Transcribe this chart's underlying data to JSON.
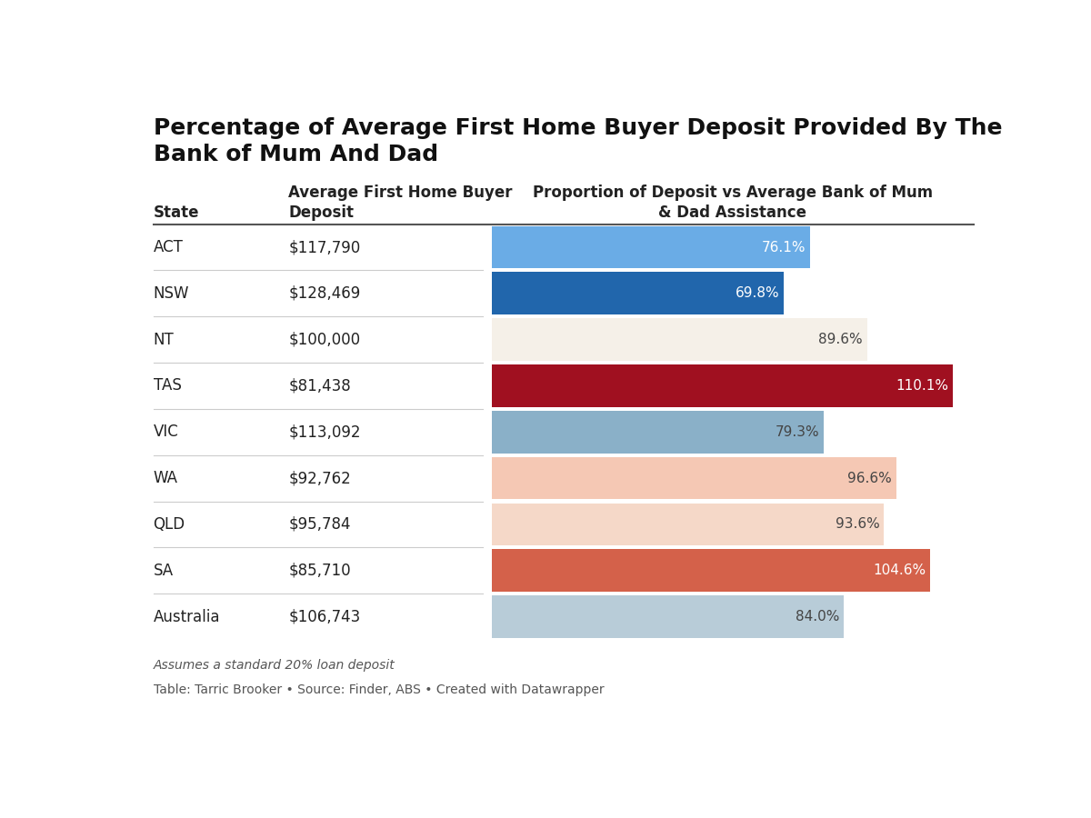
{
  "title": "Percentage of Average First Home Buyer Deposit Provided By The\nBank of Mum And Dad",
  "col1_header": "State",
  "col2_header": "Average First Home Buyer\nDeposit",
  "col3_header": "Proportion of Deposit vs Average Bank of Mum\n& Dad Assistance",
  "rows": [
    {
      "state": "ACT",
      "deposit": "$117,790",
      "pct": 76.1,
      "pct_label": "76.1%",
      "color": "#6aace6",
      "text_color": "#ffffff"
    },
    {
      "state": "NSW",
      "deposit": "$128,469",
      "pct": 69.8,
      "pct_label": "69.8%",
      "color": "#2166ac",
      "text_color": "#ffffff"
    },
    {
      "state": "NT",
      "deposit": "$100,000",
      "pct": 89.6,
      "pct_label": "89.6%",
      "color": "#f5f0e8",
      "text_color": "#444444"
    },
    {
      "state": "TAS",
      "deposit": "$81,438",
      "pct": 110.1,
      "pct_label": "110.1%",
      "color": "#a01020",
      "text_color": "#ffffff"
    },
    {
      "state": "VIC",
      "deposit": "$113,092",
      "pct": 79.3,
      "pct_label": "79.3%",
      "color": "#8ab0c8",
      "text_color": "#444444"
    },
    {
      "state": "WA",
      "deposit": "$92,762",
      "pct": 96.6,
      "pct_label": "96.6%",
      "color": "#f5c8b4",
      "text_color": "#444444"
    },
    {
      "state": "QLD",
      "deposit": "$95,784",
      "pct": 93.6,
      "pct_label": "93.6%",
      "color": "#f5d8c8",
      "text_color": "#444444"
    },
    {
      "state": "SA",
      "deposit": "$85,710",
      "pct": 104.6,
      "pct_label": "104.6%",
      "color": "#d4614a",
      "text_color": "#ffffff"
    },
    {
      "state": "Australia",
      "deposit": "$106,743",
      "pct": 84.0,
      "pct_label": "84.0%",
      "color": "#b8ccd8",
      "text_color": "#444444"
    }
  ],
  "footnote1": "Assumes a standard 20% loan deposit",
  "footnote2": "Table: Tarric Brooker • Source: Finder, ABS • Created with Datawrapper",
  "bg_color": "#ffffff",
  "max_pct": 115
}
